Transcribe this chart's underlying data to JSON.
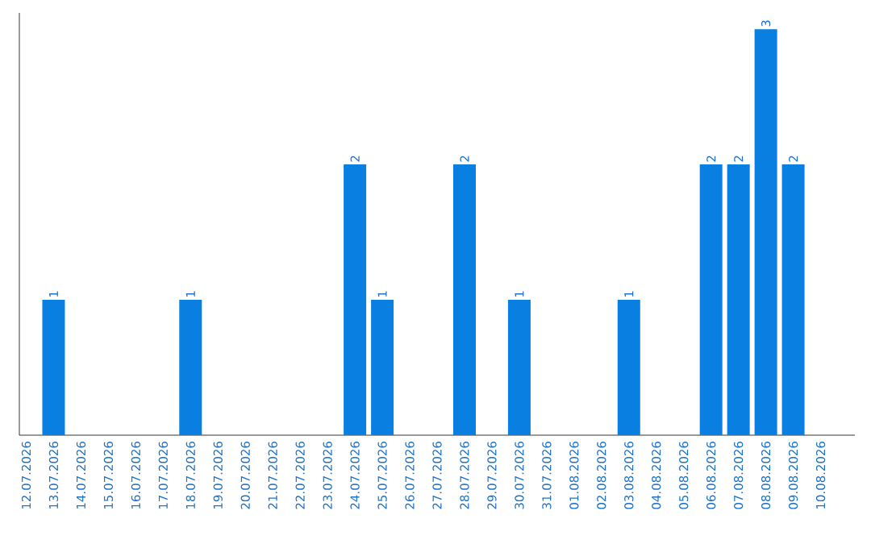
{
  "chart_data": {
    "type": "bar",
    "categories": [
      "12.07.2026",
      "13.07.2026",
      "14.07.2026",
      "15.07.2026",
      "16.07.2026",
      "17.07.2026",
      "18.07.2026",
      "19.07.2026",
      "20.07.2026",
      "21.07.2026",
      "22.07.2026",
      "23.07.2026",
      "24.07.2026",
      "25.07.2026",
      "26.07.2026",
      "27.07.2026",
      "28.07.2026",
      "29.07.2026",
      "30.07.2026",
      "31.07.2026",
      "01.08.2026",
      "02.08.2026",
      "03.08.2026",
      "04.08.2026",
      "05.08.2026",
      "06.08.2026",
      "07.08.2026",
      "08.08.2026",
      "09.08.2026",
      "10.08.2026"
    ],
    "values": [
      0,
      1,
      0,
      0,
      0,
      0,
      1,
      0,
      0,
      0,
      0,
      0,
      2,
      1,
      0,
      0,
      2,
      0,
      1,
      0,
      0,
      0,
      1,
      0,
      0,
      2,
      2,
      3,
      2,
      0
    ],
    "value_labels": [
      null,
      "1",
      null,
      null,
      null,
      null,
      "1",
      null,
      null,
      null,
      null,
      null,
      "2",
      "1",
      null,
      null,
      "2",
      null,
      "1",
      null,
      null,
      null,
      "1",
      null,
      null,
      "2",
      "2",
      "3",
      "2",
      null
    ],
    "color": "#0a7fe2"
  }
}
